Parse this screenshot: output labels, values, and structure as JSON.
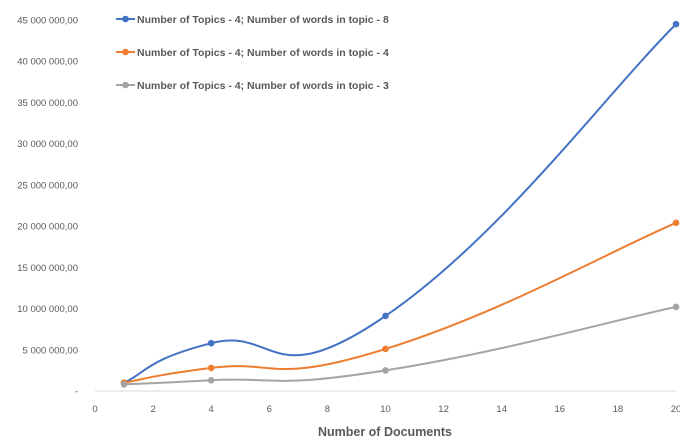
{
  "chart_data": {
    "type": "line",
    "title": "",
    "xlabel": "Number of Documents",
    "ylabel": "",
    "xlim": [
      0,
      20
    ],
    "ylim": [
      0,
      45000000
    ],
    "x_ticks": [
      "0",
      "2",
      "4",
      "6",
      "8",
      "10",
      "12",
      "14",
      "16",
      "18",
      "20"
    ],
    "y_ticks": [
      "-",
      "5 000 000,00",
      "10 000 000,00",
      "15 000 000,00",
      "20 000 000,00",
      "25 000 000,00",
      "30 000 000,00",
      "35 000 000,00",
      "40 000 000,00",
      "45 000 000,00"
    ],
    "grid": false,
    "smooth": true,
    "legend_position": "top-left",
    "series": [
      {
        "name": "Number of Topics - 4; Number of words in topic - 8",
        "color": "#4472C4",
        "x": [
          1,
          4,
          10,
          20
        ],
        "y": [
          1000000,
          5800000,
          9100000,
          44500000
        ]
      },
      {
        "name": "Number of Topics - 4; Number of words in topic - 4",
        "color": "#ED7D31",
        "x": [
          1,
          4,
          10,
          20
        ],
        "y": [
          1000000,
          2800000,
          5100000,
          20400000
        ]
      },
      {
        "name": "Number of Topics - 4; Number of words in topic - 3",
        "color": "#A5A5A5",
        "x": [
          1,
          4,
          10,
          20
        ],
        "y": [
          800000,
          1300000,
          2500000,
          10200000
        ]
      }
    ]
  }
}
